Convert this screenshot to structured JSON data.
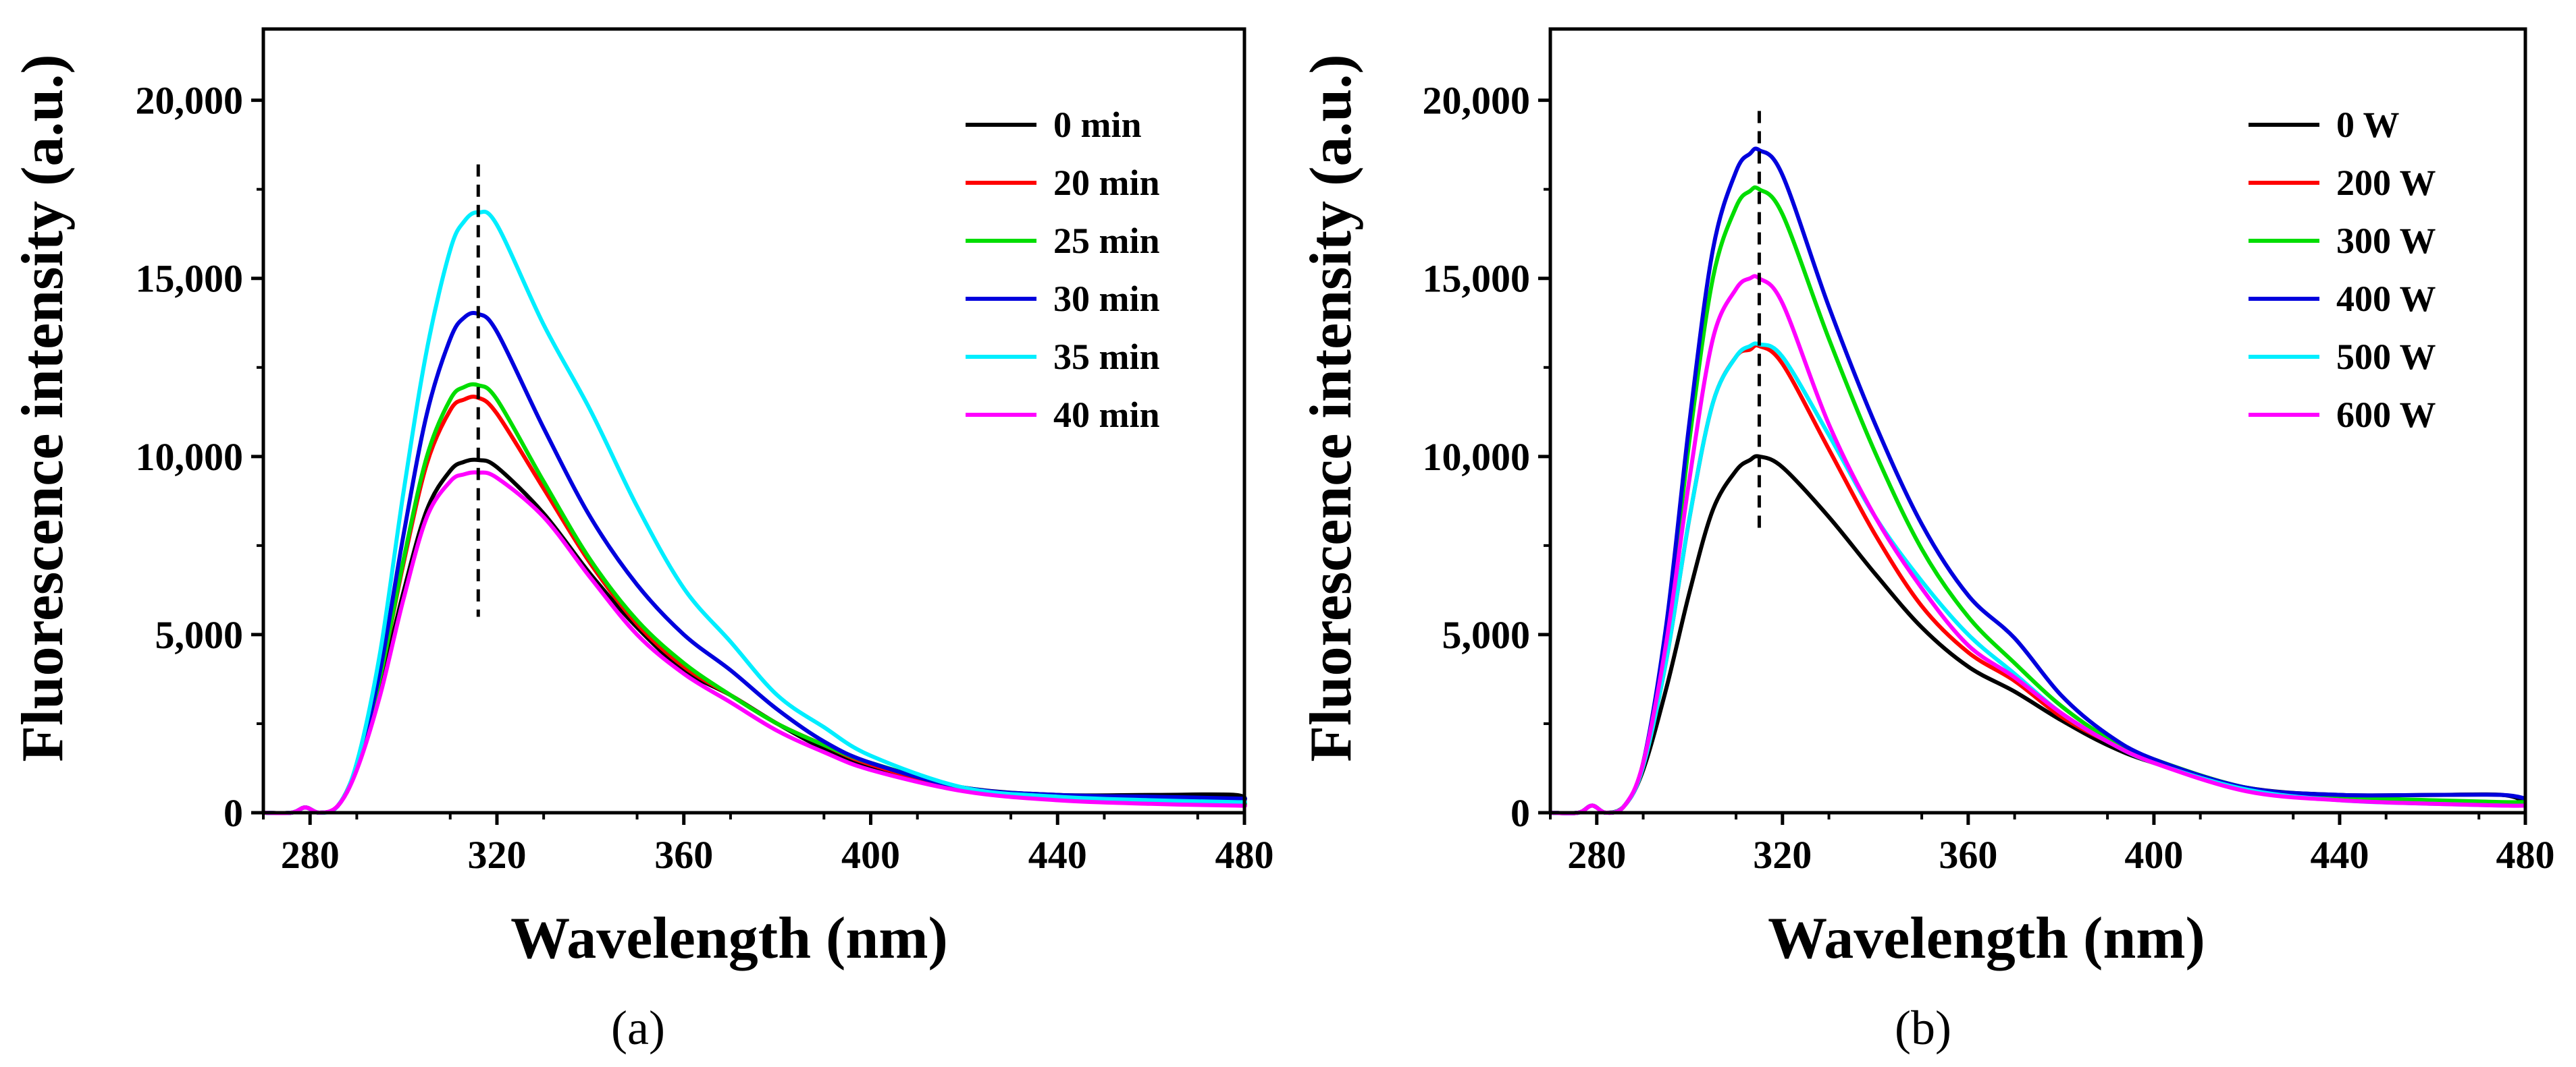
{
  "figure": {
    "panel_labels": [
      "(a)",
      "(b)"
    ]
  },
  "chart_data": [
    {
      "type": "line",
      "panel": "(a)",
      "xlabel": "Wavelength (nm)",
      "ylabel": "Fluorescence intensity (a.u.)",
      "xlim": [
        270,
        480
      ],
      "ylim": [
        0,
        22000
      ],
      "xticks": [
        280,
        320,
        360,
        400,
        440,
        480
      ],
      "xtick_labels": [
        "280",
        "320",
        "360",
        "400",
        "440",
        "480"
      ],
      "yticks": [
        0,
        5000,
        10000,
        15000,
        20000
      ],
      "ytick_labels": [
        "0",
        "5,000",
        "10,000",
        "15,000",
        "20,000"
      ],
      "legend_position": "top-right",
      "reference_line": {
        "x": 316,
        "y_range": [
          5500,
          18200
        ],
        "style": "dashed"
      },
      "x": [
        270,
        276,
        279,
        282,
        286,
        290,
        295,
        300,
        305,
        310,
        313,
        316,
        320,
        330,
        340,
        350,
        360,
        370,
        380,
        390,
        400,
        420,
        440,
        460,
        478,
        480
      ],
      "series": [
        {
          "name": "0 min",
          "color": "#000000",
          "values": [
            0,
            0,
            150,
            0,
            200,
            1300,
            3500,
            6200,
            8500,
            9600,
            9850,
            9900,
            9700,
            8400,
            6700,
            5200,
            4000,
            3300,
            2500,
            1800,
            1300,
            700,
            500,
            500,
            500,
            300
          ]
        },
        {
          "name": "20 min",
          "color": "#ff0000",
          "values": [
            0,
            0,
            150,
            0,
            200,
            1300,
            3800,
            7000,
            9800,
            11300,
            11600,
            11650,
            11200,
            9100,
            7000,
            5300,
            4100,
            3300,
            2500,
            1900,
            1350,
            650,
            400,
            300,
            250,
            250
          ]
        },
        {
          "name": "25 min",
          "color": "#00dd00",
          "values": [
            0,
            0,
            150,
            0,
            200,
            1300,
            3800,
            7100,
            10000,
            11600,
            11950,
            12000,
            11600,
            9300,
            7100,
            5400,
            4200,
            3300,
            2500,
            1900,
            1400,
            700,
            400,
            300,
            250,
            250
          ]
        },
        {
          "name": "30 min",
          "color": "#0000dd",
          "values": [
            0,
            0,
            150,
            0,
            200,
            1300,
            4000,
            7800,
            11200,
            13300,
            13900,
            14000,
            13500,
            10800,
            8300,
            6400,
            5000,
            4000,
            2900,
            2000,
            1400,
            700,
            500,
            450,
            400,
            400
          ]
        },
        {
          "name": "35 min",
          "color": "#00eeff",
          "values": [
            0,
            0,
            150,
            0,
            200,
            1400,
            4500,
            9000,
            13000,
            15800,
            16600,
            16850,
            16500,
            13700,
            11300,
            8600,
            6300,
            4800,
            3300,
            2400,
            1600,
            700,
            450,
            350,
            300,
            300
          ]
        },
        {
          "name": "40 min",
          "color": "#ff00ff",
          "values": [
            0,
            0,
            150,
            0,
            200,
            1200,
            3300,
            6000,
            8300,
            9300,
            9500,
            9550,
            9400,
            8300,
            6600,
            5000,
            3900,
            3100,
            2300,
            1700,
            1200,
            600,
            350,
            250,
            200,
            200
          ]
        }
      ]
    },
    {
      "type": "line",
      "panel": "(b)",
      "xlabel": "Wavelength (nm)",
      "ylabel": "Fluorescence intensity (a.u.)",
      "xlim": [
        270,
        480
      ],
      "ylim": [
        0,
        22000
      ],
      "xticks": [
        280,
        320,
        360,
        400,
        440,
        480
      ],
      "xtick_labels": [
        "280",
        "320",
        "360",
        "400",
        "440",
        "480"
      ],
      "yticks": [
        0,
        5000,
        10000,
        15000,
        20000
      ],
      "ytick_labels": [
        "0",
        "5,000",
        "10,000",
        "15,000",
        "20,000"
      ],
      "legend_position": "top-right",
      "reference_line": {
        "x": 315,
        "y_range": [
          7800,
          19700
        ],
        "style": "dashed"
      },
      "x": [
        270,
        276,
        279,
        282,
        286,
        290,
        295,
        300,
        305,
        310,
        313,
        315,
        320,
        330,
        340,
        350,
        360,
        370,
        380,
        390,
        400,
        420,
        440,
        460,
        475,
        480
      ],
      "series": [
        {
          "name": "0 W",
          "color": "#000000",
          "values": [
            0,
            0,
            200,
            0,
            200,
            1200,
            3500,
            6200,
            8500,
            9600,
            9900,
            10000,
            9700,
            8300,
            6700,
            5200,
            4100,
            3400,
            2600,
            1900,
            1400,
            700,
            500,
            500,
            500,
            300
          ]
        },
        {
          "name": "200 W",
          "color": "#ff0000",
          "values": [
            0,
            0,
            200,
            0,
            200,
            1300,
            4300,
            8300,
            11500,
            12800,
            13000,
            13100,
            12600,
            10200,
            7800,
            5800,
            4500,
            3700,
            2700,
            2000,
            1400,
            650,
            400,
            300,
            250,
            250
          ]
        },
        {
          "name": "300 W",
          "color": "#00dd00",
          "values": [
            0,
            0,
            200,
            0,
            200,
            1400,
            5000,
            10500,
            15000,
            17000,
            17450,
            17500,
            16800,
            13300,
            10100,
            7400,
            5500,
            4200,
            3000,
            2100,
            1500,
            700,
            450,
            350,
            300,
            300
          ]
        },
        {
          "name": "400 W",
          "color": "#0000dd",
          "values": [
            0,
            0,
            200,
            0,
            200,
            1400,
            5300,
            11000,
            15800,
            18000,
            18500,
            18600,
            17900,
            14200,
            10900,
            8100,
            6100,
            4900,
            3300,
            2200,
            1500,
            700,
            500,
            500,
            500,
            400
          ]
        },
        {
          "name": "500 W",
          "color": "#00eeff",
          "values": [
            0,
            0,
            200,
            0,
            200,
            1300,
            4300,
            8300,
            11500,
            12800,
            13100,
            13150,
            12800,
            10600,
            8300,
            6500,
            5000,
            3900,
            2800,
            2000,
            1400,
            650,
            350,
            250,
            200,
            200
          ]
        },
        {
          "name": "600 W",
          "color": "#ff00ff",
          "values": [
            0,
            0,
            200,
            0,
            200,
            1400,
            4800,
            9400,
            13300,
            14700,
            15000,
            15000,
            14300,
            10900,
            8300,
            6300,
            4700,
            3800,
            2800,
            2000,
            1400,
            600,
            350,
            250,
            200,
            200
          ]
        }
      ]
    }
  ]
}
